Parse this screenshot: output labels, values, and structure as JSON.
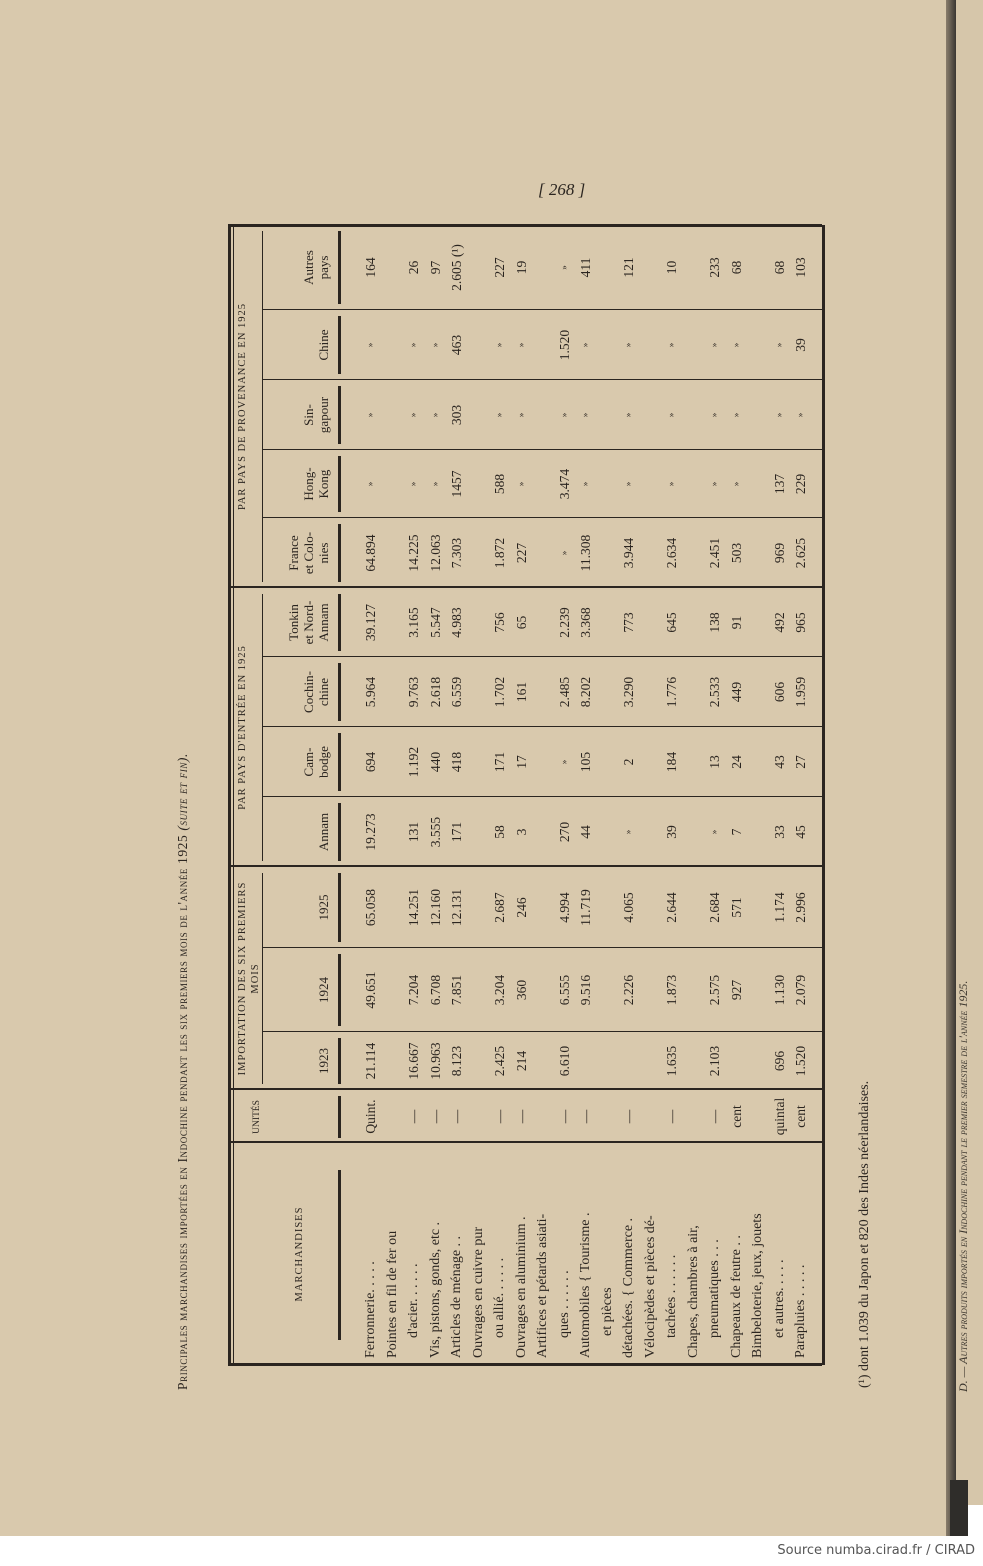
{
  "page_number": "[ 268 ]",
  "title": "Principales marchandises importées en Indochine pendant les six premiers mois de l'année 1925",
  "title_suffix": "(suite et fin).",
  "header": {
    "marchandises": "MARCHANDISES",
    "unites": "UNITÉS",
    "group_importation": "IMPORTATION DES SIX PREMIERS MOIS",
    "group_entree": "PAR PAYS D'ENTRÉE EN 1925",
    "group_provenance": "PAR PAYS DE PROVENANCE EN 1925",
    "columns": [
      "1923",
      "1924",
      "1925",
      "Annam",
      "Cam-\nbodge",
      "Cochin-\nchine",
      "Tonkin\net Nord-\nAnnam",
      "France\net Colo-\nnies",
      "Hong-\nKong",
      "Sin-\ngapour",
      "Chine",
      "Autres\npays"
    ]
  },
  "rows": [
    {
      "label_lines": [
        "Ferronnerie. . . . ."
      ],
      "unit": "Quint.",
      "values": [
        "21.114",
        "49.651",
        "65.058",
        "19.273",
        "694",
        "5.964",
        "39.127",
        "64.894",
        "»",
        "»",
        "»",
        "164"
      ]
    },
    {
      "label_lines": [
        "Pointes en fil de fer ou",
        "d'acier. . . . . ."
      ],
      "unit": "—",
      "values": [
        "16.667",
        "7.204",
        "14.251",
        "131",
        "1.192",
        "9.763",
        "3.165",
        "14.225",
        "»",
        "»",
        "»",
        "26"
      ]
    },
    {
      "label_lines": [
        "Vis, pistons, gonds, etc ."
      ],
      "unit": "—",
      "values": [
        "10.963",
        "6.708",
        "12.160",
        "3.555",
        "440",
        "2.618",
        "5.547",
        "12.063",
        "»",
        "»",
        "»",
        "97"
      ]
    },
    {
      "label_lines": [
        "Articles de ménage . ."
      ],
      "unit": "—",
      "values": [
        "8.123",
        "7.851",
        "12.131",
        "171",
        "418",
        "6.559",
        "4.983",
        "7.303",
        "1457",
        "303",
        "463",
        "2.605 (¹)"
      ]
    },
    {
      "label_lines": [
        "Ouvrages en cuivre pur",
        "ou allié. . . . . ."
      ],
      "unit": "—",
      "values": [
        "2.425",
        "3.204",
        "2.687",
        "58",
        "171",
        "1.702",
        "756",
        "1.872",
        "588",
        "»",
        "»",
        "227"
      ]
    },
    {
      "label_lines": [
        "Ouvrages en aluminium ."
      ],
      "unit": "—",
      "values": [
        "214",
        "360",
        "246",
        "3",
        "17",
        "161",
        "65",
        "227",
        "»",
        "»",
        "»",
        "19"
      ]
    },
    {
      "label_lines": [
        "Artifices et pétards asiati-",
        "ques . . . . . ."
      ],
      "unit": "—",
      "values": [
        "6.610",
        "6.555",
        "4.994",
        "270",
        "»",
        "2.485",
        "2.239",
        "»",
        "3.474",
        "»",
        "1.520",
        "»"
      ]
    },
    {
      "label_lines": [
        "Automobiles { Tourisme ."
      ],
      "unit": "—",
      "values": [
        "",
        "9.516",
        "11.719",
        "44",
        "105",
        "8.202",
        "3.368",
        "11.308",
        "»",
        "»",
        "»",
        "411"
      ]
    },
    {
      "label_lines": [
        "et pièces",
        "détachées. { Commerce ."
      ],
      "unit": "—",
      "values": [
        "",
        "2.226",
        "4.065",
        "»",
        "2",
        "3.290",
        "773",
        "3.944",
        "»",
        "»",
        "»",
        "121"
      ]
    },
    {
      "label_lines": [
        "Vélocipèdes et pièces dé-",
        "tachées . . . . . ."
      ],
      "unit": "—",
      "values": [
        "1.635",
        "1.873",
        "2.644",
        "39",
        "184",
        "1.776",
        "645",
        "2.634",
        "»",
        "»",
        "»",
        "10"
      ]
    },
    {
      "label_lines": [
        "Chapes, chambres à air,",
        "pneumatiques . . ."
      ],
      "unit": "—",
      "values": [
        "2.103",
        "2.575",
        "2.684",
        "»",
        "13",
        "2.533",
        "138",
        "2.451",
        "»",
        "»",
        "»",
        "233"
      ]
    },
    {
      "label_lines": [
        "Chapeaux de feutre . ."
      ],
      "unit": "cent",
      "values": [
        "",
        "927",
        "571",
        "7",
        "24",
        "449",
        "91",
        "503",
        "»",
        "»",
        "»",
        "68"
      ]
    },
    {
      "label_lines": [
        "Bimbeloterie, jeux, jouets",
        "et autres. . . . ."
      ],
      "unit": "quintal",
      "values": [
        "696",
        "1.130",
        "1.174",
        "33",
        "43",
        "606",
        "492",
        "969",
        "137",
        "»",
        "»",
        "68"
      ]
    },
    {
      "label_lines": [
        "Parapluies . . . . ."
      ],
      "unit": "cent",
      "values": [
        "1.520",
        "2.079",
        "2.996",
        "45",
        "27",
        "1.959",
        "965",
        "2.625",
        "229",
        "»",
        "39",
        "103"
      ]
    }
  ],
  "footnote": "(¹) dont 1.039 du Japon et 820 des Indes néerlandaises.",
  "next_page_heading": "D. — Autres produits importés en Indochine pendant le premier semestre de l'année 1925.",
  "source": "Source numba.cirad.fr / CIRAD",
  "colors": {
    "paper": "#d9c9ad",
    "ink": "#2b2520"
  }
}
